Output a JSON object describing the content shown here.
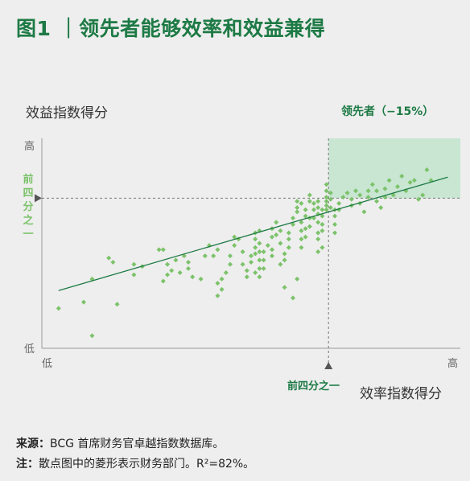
{
  "title": "图1 ｜领先者能够效率和效益兼得",
  "chart_data": {
    "type": "scatter",
    "ylabel": "效益指数得分",
    "xlabel": "效率指数得分",
    "leader_label": "领先者（−15%）",
    "quartile_x_label": "前四分之一",
    "quartile_y_label": "前四分之一",
    "y_ticks": {
      "high": "高",
      "low": "低"
    },
    "x_ticks": {
      "low": "低",
      "high": "高"
    },
    "xlim": [
      0,
      100
    ],
    "ylim": [
      0,
      100
    ],
    "quartile_threshold": {
      "x": 68.5,
      "y": 71.5
    },
    "trend_line": [
      [
        4,
        27.5
      ],
      [
        97,
        81.5
      ]
    ],
    "colors": {
      "points": "#7cc26a",
      "trend": "#1d7a45",
      "leader_area": "#c8e6d2"
    },
    "points": [
      [
        4,
        19
      ],
      [
        10,
        22
      ],
      [
        12,
        6
      ],
      [
        12,
        33
      ],
      [
        18,
        21
      ],
      [
        16,
        43
      ],
      [
        17,
        41
      ],
      [
        22,
        35
      ],
      [
        22,
        40
      ],
      [
        24,
        39
      ],
      [
        28,
        47
      ],
      [
        29,
        47
      ],
      [
        29,
        32
      ],
      [
        30,
        35
      ],
      [
        31,
        37
      ],
      [
        30,
        40
      ],
      [
        32,
        42
      ],
      [
        33,
        36
      ],
      [
        34,
        44
      ],
      [
        35,
        41
      ],
      [
        35,
        38
      ],
      [
        36,
        34
      ],
      [
        38,
        33
      ],
      [
        39,
        44
      ],
      [
        40,
        49
      ],
      [
        41,
        44
      ],
      [
        42,
        47
      ],
      [
        42,
        31
      ],
      [
        42,
        25
      ],
      [
        43,
        33
      ],
      [
        43,
        28
      ],
      [
        44,
        36
      ],
      [
        45,
        40
      ],
      [
        45,
        44
      ],
      [
        46,
        53
      ],
      [
        46,
        49
      ],
      [
        47,
        52
      ],
      [
        48,
        46
      ],
      [
        48,
        40
      ],
      [
        49,
        34
      ],
      [
        49,
        37
      ],
      [
        50,
        44
      ],
      [
        50,
        41
      ],
      [
        51,
        45
      ],
      [
        51,
        48
      ],
      [
        51,
        52
      ],
      [
        51,
        55
      ],
      [
        52,
        56
      ],
      [
        52,
        50
      ],
      [
        52,
        46
      ],
      [
        52,
        42
      ],
      [
        52,
        38
      ],
      [
        52,
        34
      ],
      [
        53,
        38
      ],
      [
        53,
        42
      ],
      [
        53,
        46
      ],
      [
        54,
        49
      ],
      [
        55,
        44
      ],
      [
        55,
        47
      ],
      [
        55,
        53
      ],
      [
        55,
        57
      ],
      [
        56,
        54
      ],
      [
        56,
        60
      ],
      [
        57,
        56
      ],
      [
        57,
        50
      ],
      [
        57,
        40
      ],
      [
        58,
        45
      ],
      [
        58,
        42
      ],
      [
        59,
        48
      ],
      [
        59,
        52
      ],
      [
        59,
        55
      ],
      [
        60,
        59
      ],
      [
        60,
        62
      ],
      [
        61,
        65
      ],
      [
        61,
        70
      ],
      [
        61,
        67
      ],
      [
        62,
        69
      ],
      [
        62,
        60
      ],
      [
        62,
        56
      ],
      [
        62,
        52
      ],
      [
        62,
        48
      ],
      [
        63,
        53
      ],
      [
        63,
        57
      ],
      [
        63,
        63
      ],
      [
        63,
        66
      ],
      [
        64,
        73
      ],
      [
        64,
        70
      ],
      [
        64,
        62
      ],
      [
        64,
        58
      ],
      [
        65,
        62
      ],
      [
        65,
        66
      ],
      [
        65,
        69
      ],
      [
        66,
        70
      ],
      [
        66,
        67
      ],
      [
        66,
        64
      ],
      [
        66,
        60
      ],
      [
        66,
        55
      ],
      [
        66,
        52
      ],
      [
        66,
        46
      ],
      [
        67,
        48
      ],
      [
        67,
        56
      ],
      [
        67,
        59
      ],
      [
        67,
        63
      ],
      [
        67,
        66
      ],
      [
        68,
        66
      ],
      [
        68,
        70
      ],
      [
        68,
        72
      ],
      [
        68,
        75
      ],
      [
        68,
        78
      ],
      [
        68,
        68
      ],
      [
        69,
        67
      ],
      [
        69,
        71
      ],
      [
        69,
        74
      ],
      [
        70,
        66
      ],
      [
        70,
        63
      ],
      [
        70,
        59
      ],
      [
        70,
        55
      ],
      [
        71,
        66
      ],
      [
        71,
        69
      ],
      [
        72,
        72
      ],
      [
        73,
        74
      ],
      [
        74,
        68
      ],
      [
        74,
        71
      ],
      [
        75,
        75
      ],
      [
        76,
        73
      ],
      [
        76,
        69
      ],
      [
        77,
        65
      ],
      [
        78,
        72
      ],
      [
        78,
        75
      ],
      [
        79,
        78
      ],
      [
        80,
        75
      ],
      [
        80,
        70
      ],
      [
        81,
        67
      ],
      [
        82,
        72
      ],
      [
        82,
        76
      ],
      [
        83,
        80
      ],
      [
        84,
        73
      ],
      [
        85,
        77
      ],
      [
        86,
        82
      ],
      [
        87,
        75
      ],
      [
        88,
        79
      ],
      [
        89,
        80
      ],
      [
        90,
        71
      ],
      [
        91,
        73
      ],
      [
        92,
        85
      ],
      [
        93,
        80
      ],
      [
        58,
        29
      ],
      [
        60,
        24
      ],
      [
        61,
        33
      ],
      [
        51,
        36
      ]
    ]
  },
  "notes": {
    "source_label": "来源：",
    "source_text": "BCG 首席财务官卓越指数数据库。",
    "note_label": "注：",
    "note_text": "散点图中的菱形表示财务部门。R²=82%。"
  }
}
